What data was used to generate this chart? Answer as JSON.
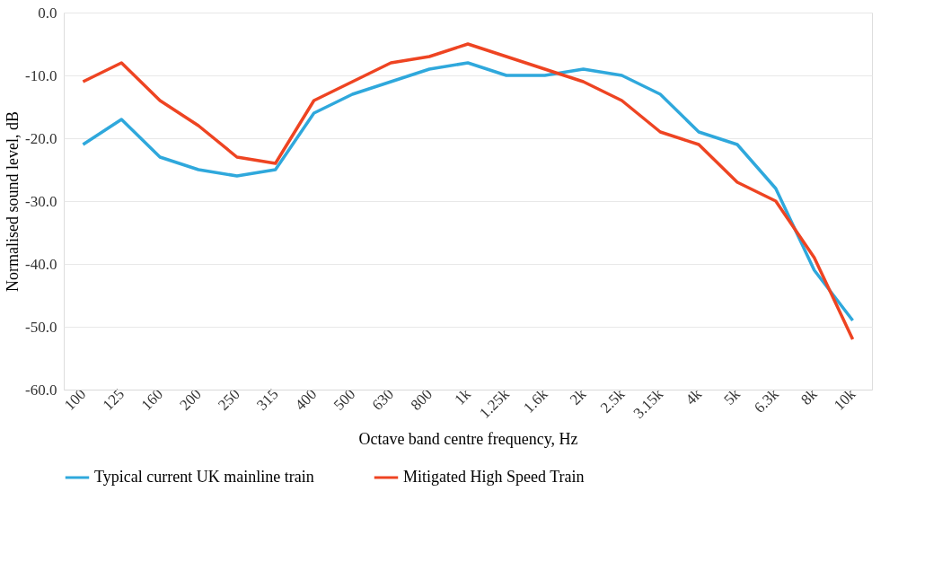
{
  "chart_data": {
    "type": "line",
    "xlabel": "Octave band centre frequency, Hz",
    "ylabel": "Normalised sound level, dB",
    "categories": [
      "100",
      "125",
      "160",
      "200",
      "250",
      "315",
      "400",
      "500",
      "630",
      "800",
      "1k",
      "1.25k",
      "1.6k",
      "2k",
      "2.5k",
      "3.15k",
      "4k",
      "5k",
      "6.3k",
      "8k",
      "10k"
    ],
    "series": [
      {
        "name": "Typical current UK mainline train",
        "color": "#2fa8dc",
        "values": [
          -21,
          -17,
          -23,
          -25,
          -26,
          -25,
          -16,
          -13,
          -11,
          -9,
          -8,
          -10,
          -10,
          -9,
          -10,
          -13,
          -19,
          -21,
          -28,
          -41,
          -49
        ]
      },
      {
        "name": "Mitigated High Speed Train",
        "color": "#ee4422",
        "values": [
          -11,
          -8,
          -14,
          -18,
          -23,
          -24,
          -14,
          -11,
          -8,
          -7,
          -5,
          -7,
          -9,
          -11,
          -14,
          -19,
          -21,
          -27,
          -30,
          -39,
          -52
        ]
      }
    ],
    "ylim": [
      -60,
      0
    ],
    "yticks": [
      {
        "value": -60,
        "label": "-60.0"
      },
      {
        "value": -50,
        "label": "-50.0"
      },
      {
        "value": -40,
        "label": "-40.0"
      },
      {
        "value": -30,
        "label": "-30.0"
      },
      {
        "value": -20,
        "label": "-20.0"
      },
      {
        "value": -10,
        "label": "-10.0"
      },
      {
        "value": 0,
        "label": "0.0"
      }
    ],
    "grid": "y",
    "legend": "bottom",
    "marker": "none",
    "line_style": "solid"
  }
}
